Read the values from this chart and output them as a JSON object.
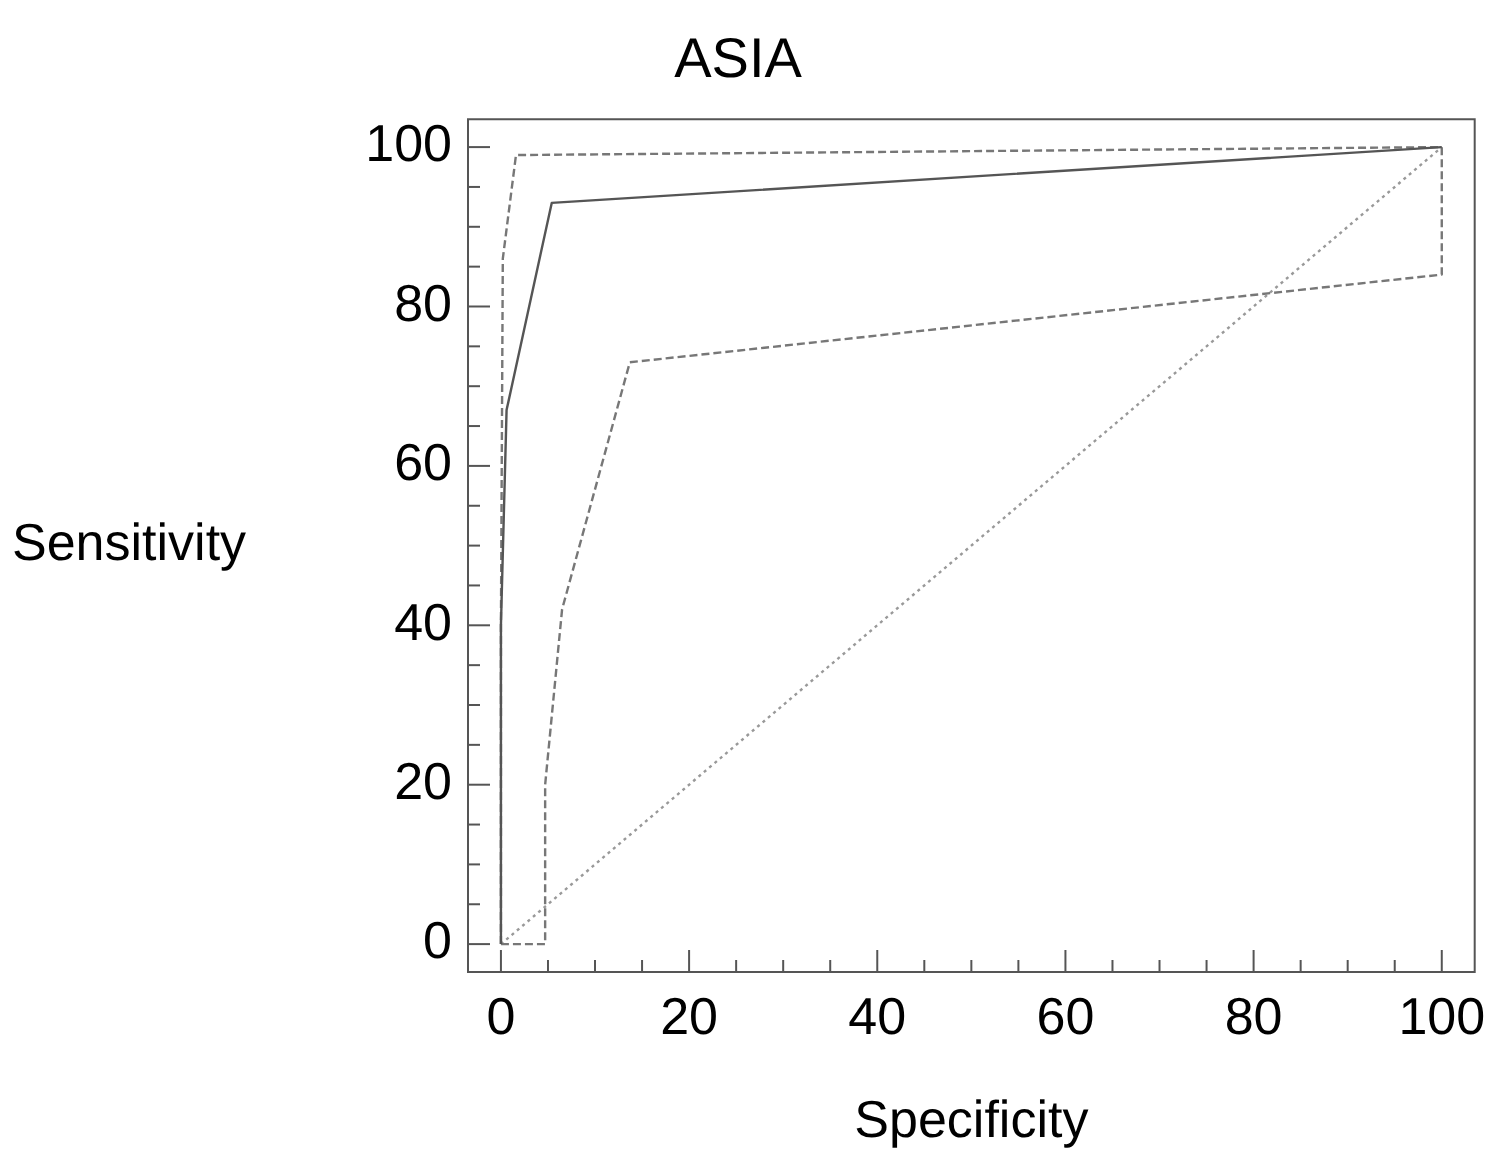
{
  "chart_data": {
    "type": "line",
    "title": "ASIA",
    "xlabel": "Specificity",
    "ylabel": "Sensitivity",
    "xlim": [
      -3.5,
      103.5
    ],
    "ylim": [
      -3.5,
      103.5
    ],
    "xticks": [
      0,
      {
        "value": 5,
        "label": null
      },
      {
        "value": 10,
        "label": null
      },
      {
        "value": 15,
        "label": null
      },
      20,
      {
        "value": 25,
        "label": null
      },
      {
        "value": 30,
        "label": null
      },
      {
        "value": 35,
        "label": null
      },
      40,
      {
        "value": 45,
        "label": null
      },
      {
        "value": 50,
        "label": null
      },
      {
        "value": 55,
        "label": null
      },
      60,
      {
        "value": 65,
        "label": null
      },
      {
        "value": 70,
        "label": null
      },
      {
        "value": 75,
        "label": null
      },
      80,
      {
        "value": 85,
        "label": null
      },
      {
        "value": 90,
        "label": null
      },
      {
        "value": 95,
        "label": null
      },
      100
    ],
    "yticks": [
      0,
      {
        "value": 5,
        "label": null
      },
      {
        "value": 10,
        "label": null
      },
      {
        "value": 15,
        "label": null
      },
      20,
      {
        "value": 25,
        "label": null
      },
      {
        "value": 30,
        "label": null
      },
      {
        "value": 35,
        "label": null
      },
      40,
      {
        "value": 45,
        "label": null
      },
      {
        "value": 50,
        "label": null
      },
      {
        "value": 55,
        "label": null
      },
      60,
      {
        "value": 65,
        "label": null
      },
      {
        "value": 70,
        "label": null
      },
      {
        "value": 75,
        "label": null
      },
      80,
      {
        "value": 85,
        "label": null
      },
      {
        "value": 90,
        "label": null
      },
      {
        "value": 95,
        "label": null
      },
      100
    ],
    "grid": false,
    "legend": false,
    "marker": "none",
    "series": [
      {
        "color": "#555555",
        "line_style": "solid",
        "x": [
          0,
          0,
          0.6,
          5.4,
          100
        ],
        "values": [
          0,
          40,
          67,
          93,
          100
        ]
      },
      {
        "color": "#777777",
        "line_style": "dashed",
        "x": [
          0,
          0,
          0.2,
          1.6,
          100
        ],
        "values": [
          0,
          40,
          86,
          99,
          100
        ]
      },
      {
        "color": "#777777",
        "line_style": "dashed",
        "x": [
          0,
          4.7,
          4.7,
          6.5,
          13.7,
          100,
          100
        ],
        "values": [
          0,
          0,
          20,
          42,
          73,
          84,
          100
        ]
      },
      {
        "color": "#999999",
        "line_style": "dotted",
        "x": [
          0,
          100
        ],
        "values": [
          0,
          100
        ]
      }
    ]
  }
}
